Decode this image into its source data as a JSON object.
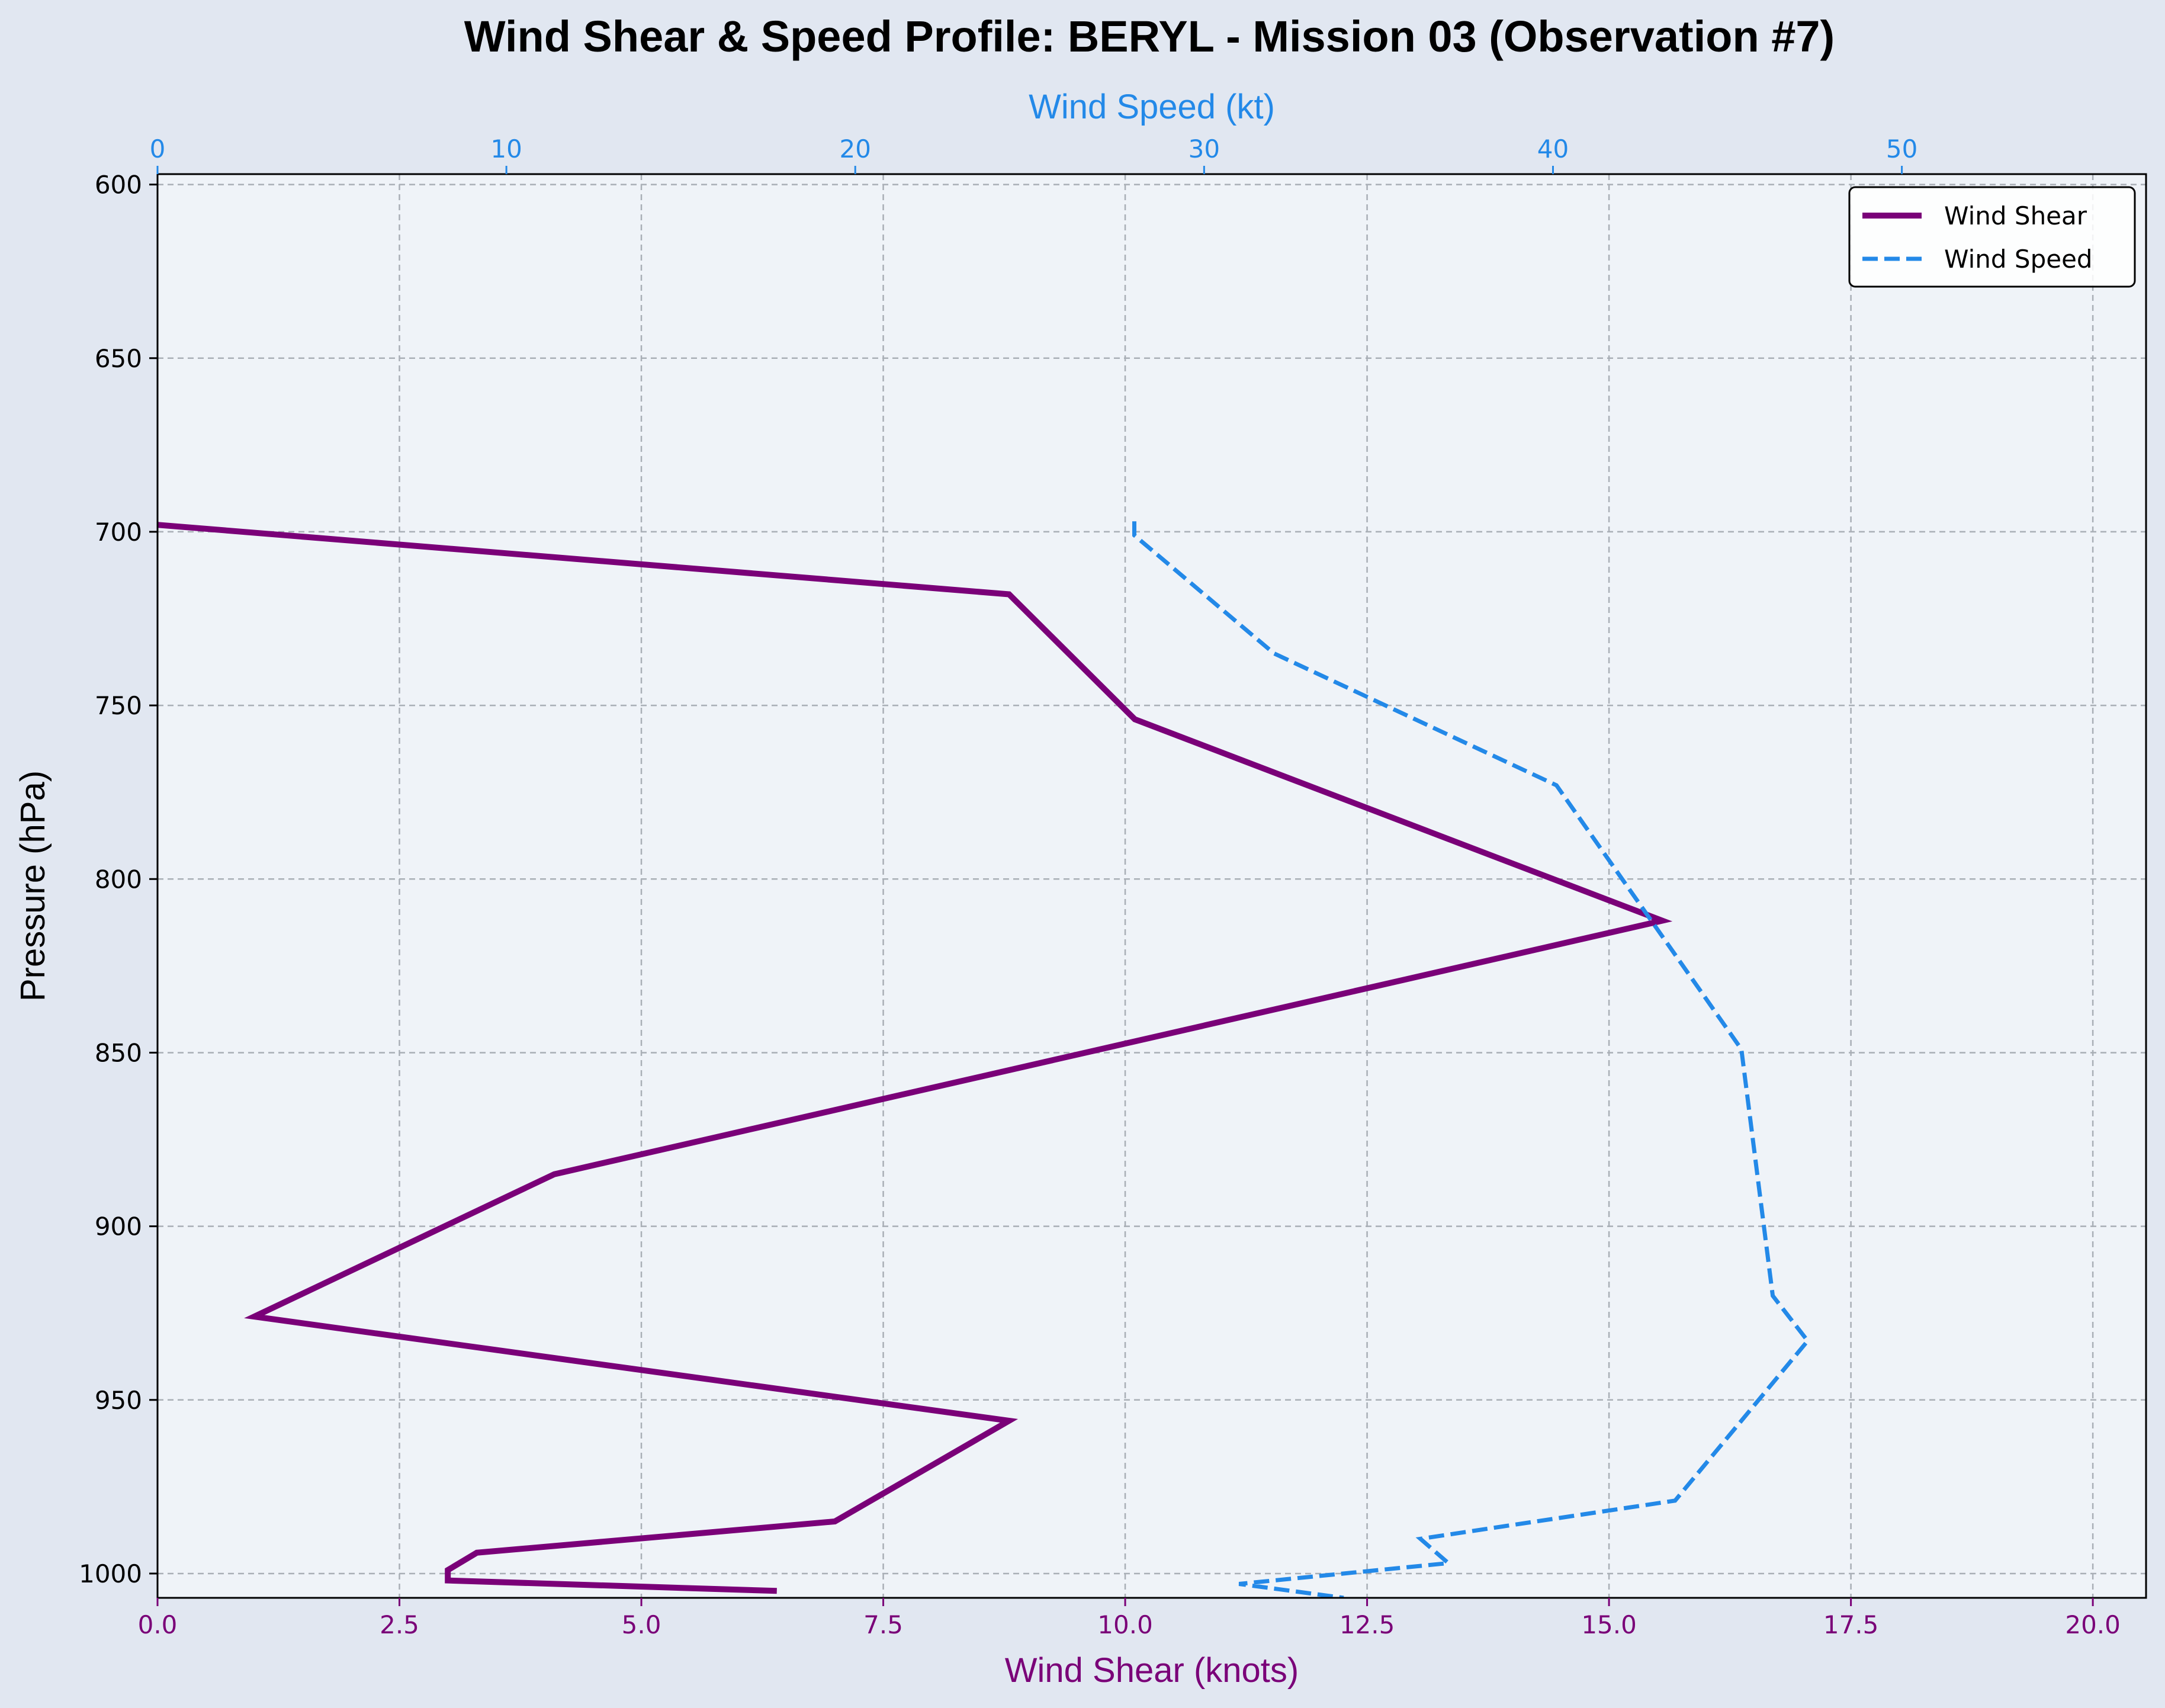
{
  "colors": {
    "background": "#e1e7f1",
    "plot_background": "#eff3f8",
    "shear": "#7a0078",
    "speed": "#2389e8",
    "grid": "#a9afb6",
    "axis": "#000000"
  },
  "chart_data": {
    "type": "line",
    "title": "Wind Shear & Speed Profile: BERYL - Mission 03 (Observation #7)",
    "ylabel": "Pressure (hPa)",
    "x_bottom_label": "Wind Shear (knots)",
    "x_top_label": "Wind Speed (kt)",
    "y_ticks": [
      "600",
      "650",
      "700",
      "750",
      "800",
      "850",
      "900",
      "950",
      "1000"
    ],
    "y_tick_values": [
      600,
      650,
      700,
      750,
      800,
      850,
      900,
      950,
      1000
    ],
    "x_bottom_ticks": [
      "0.0",
      "2.5",
      "5.0",
      "7.5",
      "10.0",
      "12.5",
      "15.0",
      "17.5",
      "20.0"
    ],
    "x_bottom_tick_values": [
      0,
      2.5,
      5,
      7.5,
      10,
      12.5,
      15,
      17.5,
      20
    ],
    "x_top_ticks": [
      "0",
      "10",
      "20",
      "30",
      "40",
      "50"
    ],
    "x_top_tick_values": [
      0,
      10,
      20,
      30,
      40,
      50
    ],
    "ylim": [
      1007,
      597
    ],
    "x_bottom_lim": [
      0,
      20.55
    ],
    "x_top_lim": [
      0,
      57
    ],
    "grid": true,
    "legend_position": "top-right",
    "series": [
      {
        "name": "Wind Shear",
        "axis": "bottom",
        "style": "solid",
        "points": [
          {
            "x": 0.0,
            "y": 698
          },
          {
            "x": 8.8,
            "y": 718
          },
          {
            "x": 10.1,
            "y": 754
          },
          {
            "x": 15.55,
            "y": 812
          },
          {
            "x": 4.1,
            "y": 885
          },
          {
            "x": 1.0,
            "y": 926
          },
          {
            "x": 8.8,
            "y": 956
          },
          {
            "x": 7.0,
            "y": 985
          },
          {
            "x": 3.3,
            "y": 994
          },
          {
            "x": 3.0,
            "y": 999
          },
          {
            "x": 3.0,
            "y": 1002
          },
          {
            "x": 6.4,
            "y": 1005
          }
        ]
      },
      {
        "name": "Wind Speed",
        "axis": "top",
        "style": "dashed",
        "points": [
          {
            "x": 28.0,
            "y": 697
          },
          {
            "x": 28.0,
            "y": 701
          },
          {
            "x": 32.0,
            "y": 735
          },
          {
            "x": 40.1,
            "y": 773
          },
          {
            "x": 45.4,
            "y": 849
          },
          {
            "x": 46.3,
            "y": 920
          },
          {
            "x": 47.3,
            "y": 933
          },
          {
            "x": 43.5,
            "y": 979
          },
          {
            "x": 36.2,
            "y": 990
          },
          {
            "x": 37.0,
            "y": 997
          },
          {
            "x": 31.0,
            "y": 1003
          },
          {
            "x": 34.0,
            "y": 1007
          }
        ]
      }
    ]
  }
}
